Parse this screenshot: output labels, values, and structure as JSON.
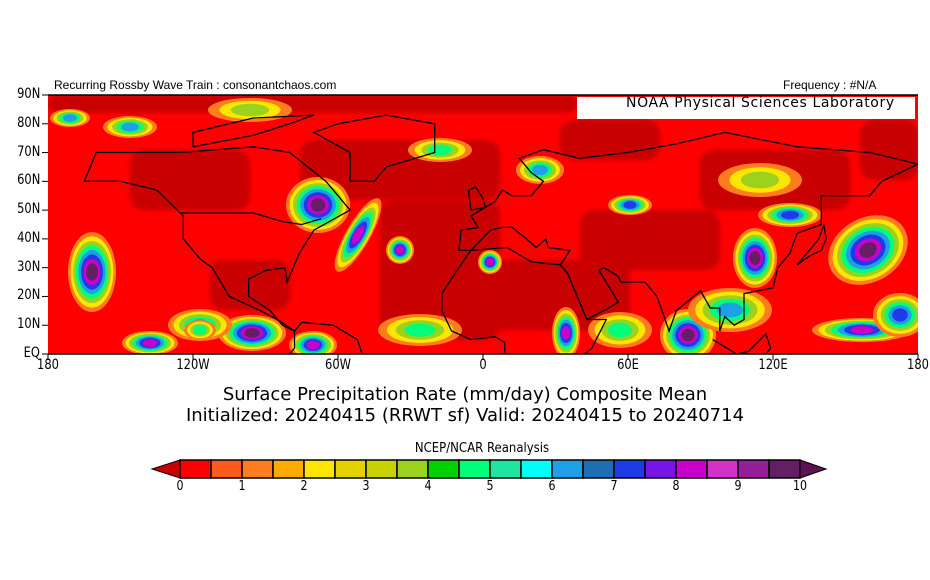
{
  "header": {
    "left_text": "Recurring Rossby Wave Train : consonantchaos.com",
    "right_text": "Frequency : #N/A",
    "lab_label": "NOAA Physical Sciences Laboratory"
  },
  "map": {
    "lat_labels": [
      "90N",
      "80N",
      "70N",
      "60N",
      "50N",
      "40N",
      "30N",
      "20N",
      "10N",
      "EQ"
    ],
    "lon_labels": [
      "180",
      "120W",
      "60W",
      "0",
      "60E",
      "120E",
      "180"
    ],
    "background_color": "#ff0000"
  },
  "title": {
    "line1": "Surface Precipitation Rate (mm/day) Composite Mean",
    "line2": "Initialized: 20240415 (RRWT sf) Valid: 20240415 to 20240714"
  },
  "colorbar": {
    "source": "NCEP/NCAR Reanalysis",
    "tick_labels": [
      "0",
      "1",
      "2",
      "3",
      "4",
      "5",
      "6",
      "7",
      "8",
      "9",
      "10"
    ],
    "under_color": "#c80000",
    "over_color": "#5a1450",
    "colors": [
      "#ff0000",
      "#ff5a1e",
      "#ff7d1e",
      "#ffaa00",
      "#ffe600",
      "#e6d200",
      "#c8d200",
      "#9bd21e",
      "#00d200",
      "#00ff78",
      "#1ee6a0",
      "#00ffff",
      "#1ea0e6",
      "#1e6eb4",
      "#1e3ce6",
      "#7814e6",
      "#c800c8",
      "#d232c8",
      "#961e96",
      "#641e64"
    ]
  }
}
